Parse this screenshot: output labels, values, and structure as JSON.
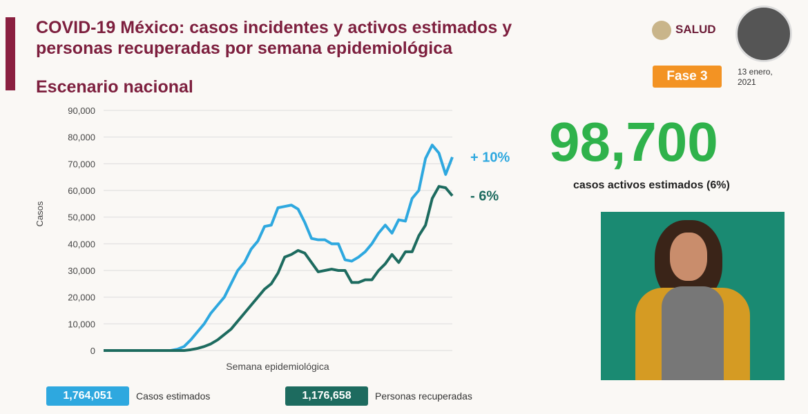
{
  "header": {
    "title_lines": [
      "COVID-19 México: casos incidentes y activos estimados y",
      "personas recuperadas por semana epidemiológica"
    ],
    "subtitle": "Escenario nacional",
    "logo_text": "SALUD",
    "phase": "Fase 3",
    "date_lines": [
      "13 enero,",
      "2021"
    ]
  },
  "headline": {
    "number": "98,700",
    "caption": "casos activos estimados (6%)"
  },
  "chart_data": {
    "type": "line",
    "x_label": "Semana epidemiológica",
    "y_label": "Casos",
    "categories": [
      null,
      null,
      null,
      null,
      null,
      null,
      null,
      null,
      null,
      null,
      null,
      null,
      null,
      null,
      null,
      null,
      null,
      null,
      null,
      null,
      null,
      null,
      null,
      null,
      null,
      null,
      null,
      null,
      null,
      null,
      null,
      null,
      null,
      null,
      null,
      null,
      null,
      null,
      null,
      null,
      null,
      null,
      null,
      null,
      null,
      null,
      null,
      null,
      null,
      null,
      null,
      null,
      null
    ],
    "series": [
      {
        "name": "Casos estimados",
        "total": "1,764,051",
        "color": "#2ea8df",
        "annotation": "+ 10%",
        "values": [
          0,
          0,
          0,
          0,
          0,
          0,
          0,
          0,
          0,
          0,
          0,
          500,
          1500,
          4000,
          7000,
          10000,
          14000,
          17000,
          20000,
          25000,
          30000,
          33000,
          38000,
          41000,
          46500,
          47000,
          53500,
          54000,
          54500,
          53000,
          48000,
          42000,
          41500,
          41500,
          40000,
          40000,
          34000,
          33500,
          35000,
          37000,
          40000,
          44000,
          47000,
          44000,
          49000,
          48500,
          57000,
          60000,
          72000,
          77000,
          74000,
          66000,
          72500
        ]
      },
      {
        "name": "Personas recuperadas",
        "total": "1,176,658",
        "color": "#1d6b5f",
        "annotation": "- 6%",
        "values": [
          0,
          0,
          0,
          0,
          0,
          0,
          0,
          0,
          0,
          0,
          0,
          0,
          0,
          300,
          800,
          1500,
          2500,
          4000,
          6000,
          8000,
          11000,
          14000,
          17000,
          20000,
          23000,
          25000,
          29000,
          35000,
          36000,
          37500,
          36500,
          33000,
          29500,
          30000,
          30500,
          30000,
          30000,
          25500,
          25500,
          26500,
          26500,
          30000,
          32500,
          36000,
          33000,
          37000,
          37000,
          43000,
          47000,
          57000,
          61500,
          61000,
          58000
        ]
      }
    ],
    "ylim": [
      0,
      90000
    ],
    "yticks": [
      0,
      {
        "value": 10000,
        "label": "10,000"
      },
      {
        "value": 20000,
        "label": "20,000"
      },
      {
        "value": 30000,
        "label": "30,000"
      },
      {
        "value": 40000,
        "label": "40,000"
      },
      {
        "value": 50000,
        "label": "50,000"
      },
      {
        "value": 60000,
        "label": "60,000"
      },
      {
        "value": 70000,
        "label": "70,000"
      },
      {
        "value": 80000,
        "label": "80,000"
      },
      {
        "value": 90000,
        "label": "90,000"
      }
    ],
    "grid": true
  }
}
